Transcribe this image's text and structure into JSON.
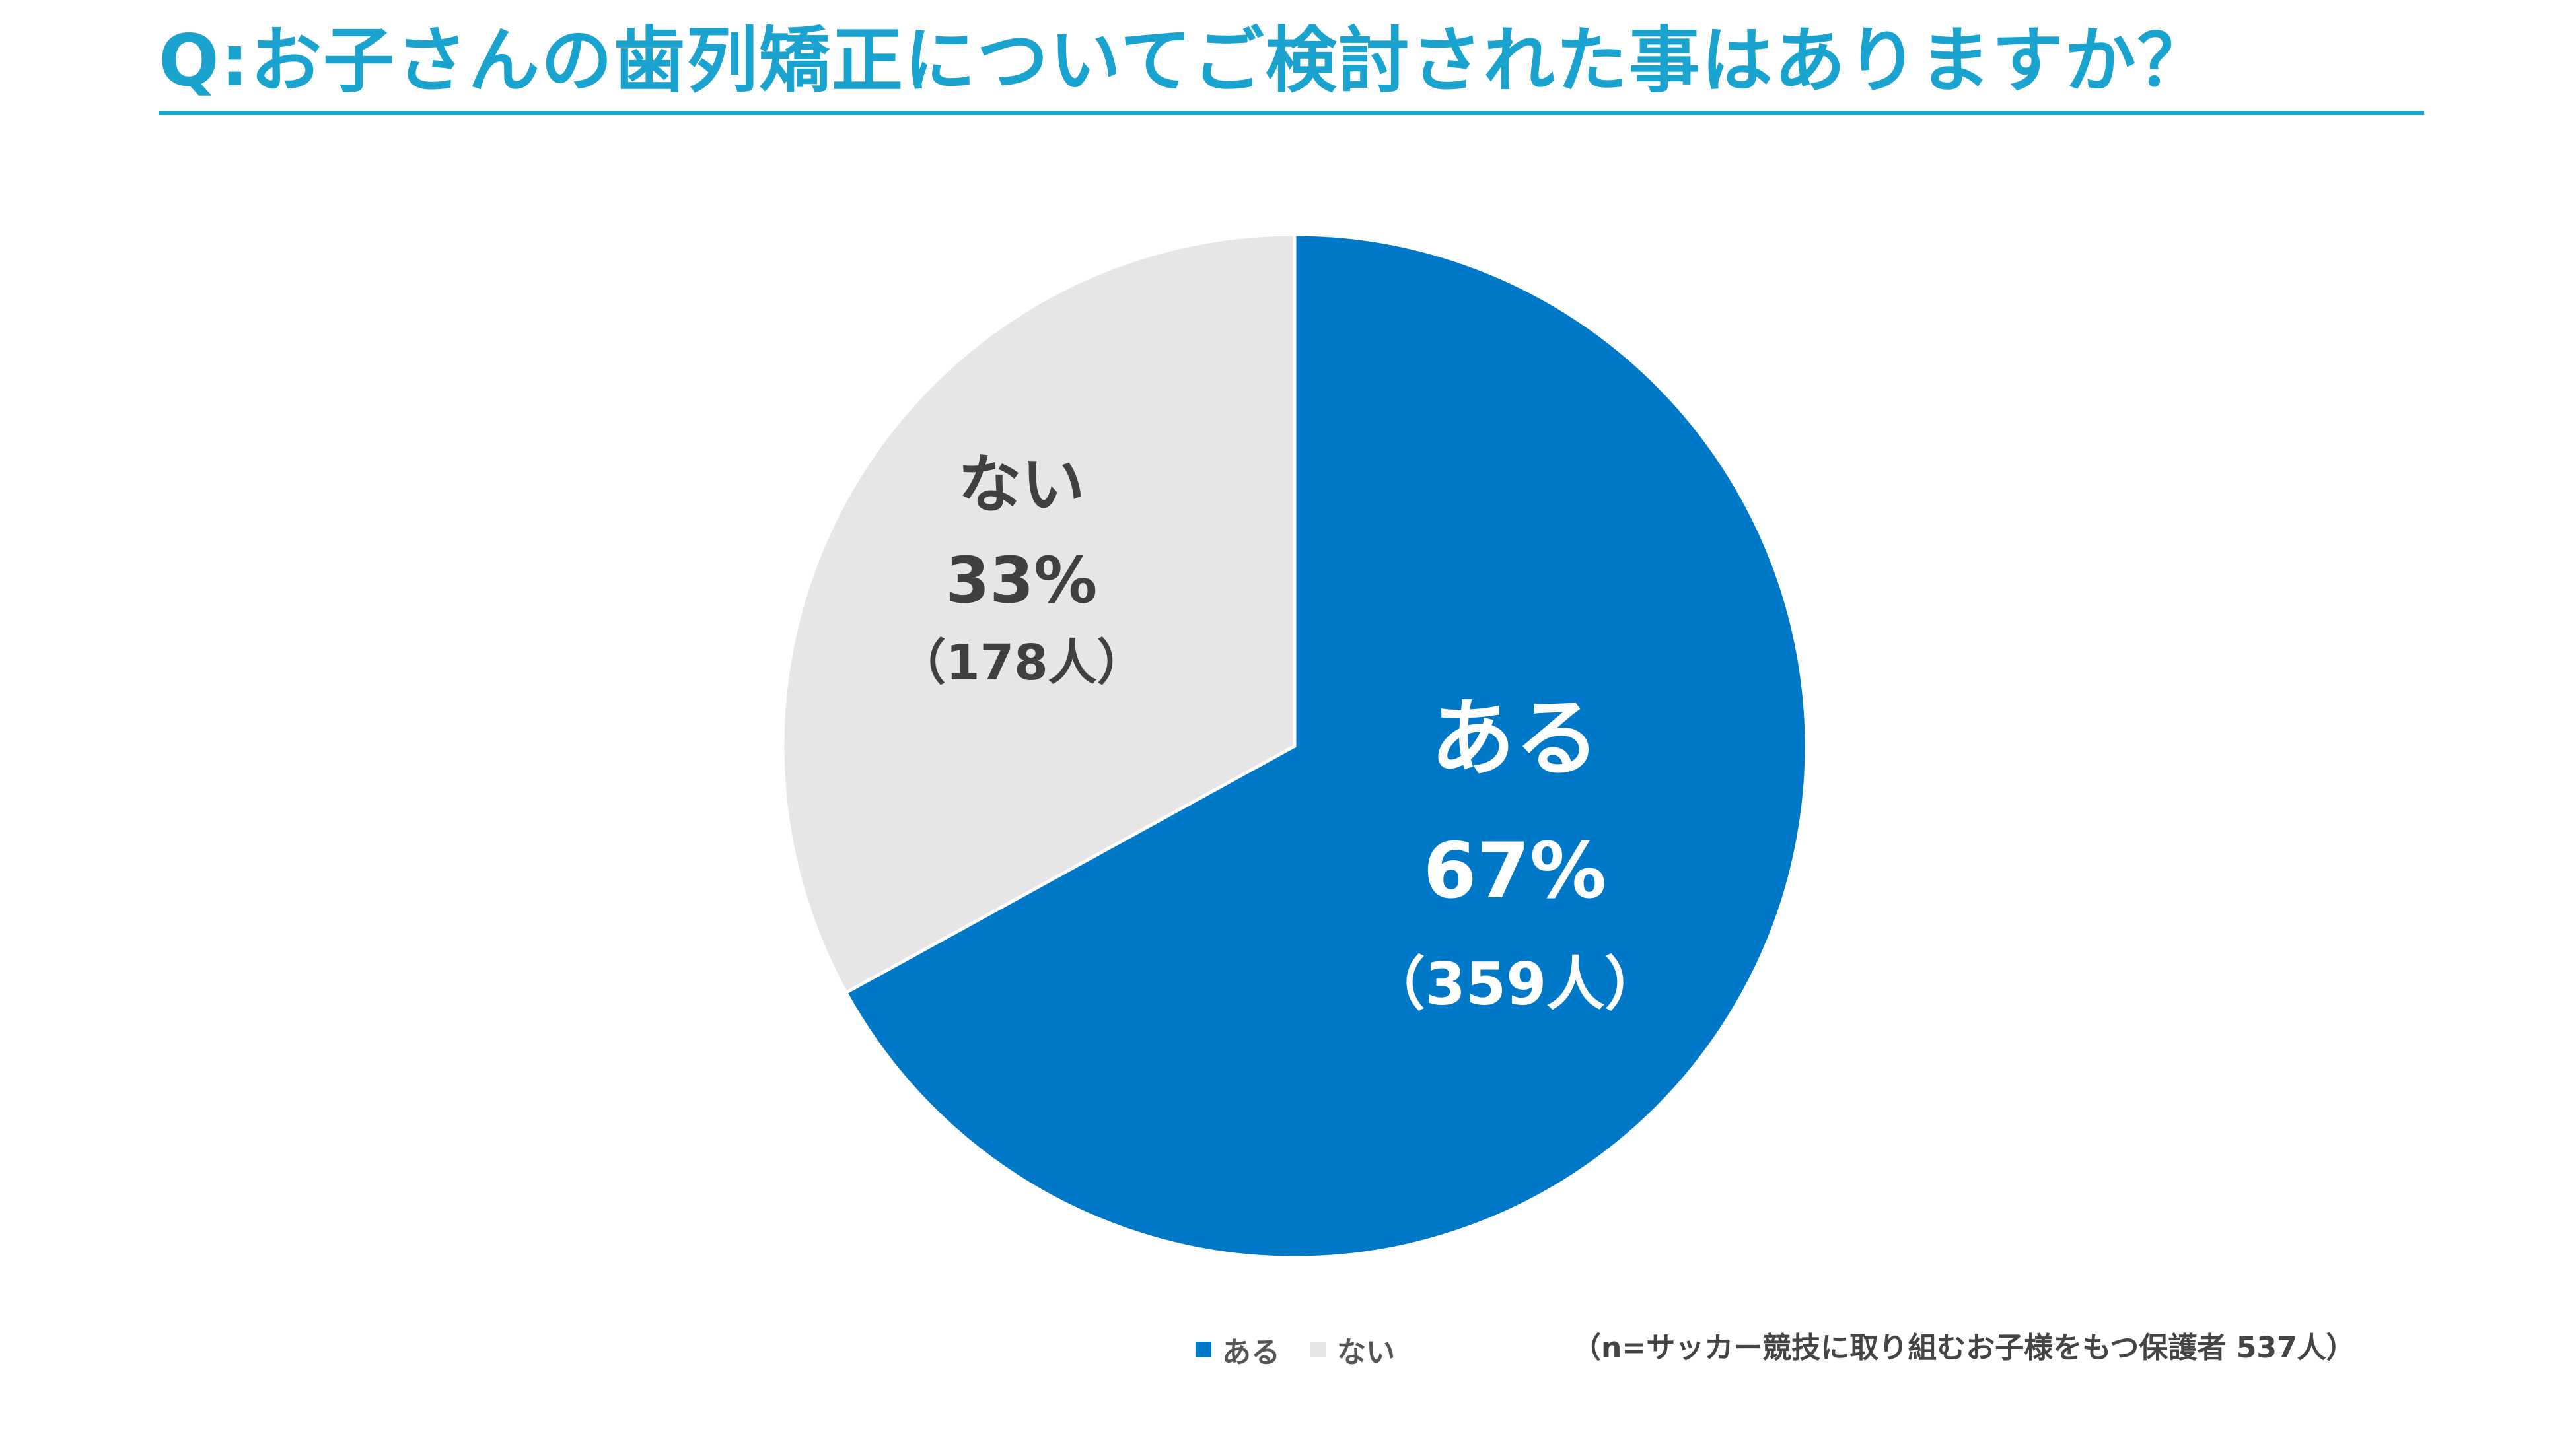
{
  "chart_data": {
    "type": "pie",
    "title": "Q:お子さんの歯列矯正についてご検討された事はありますか？",
    "slices": [
      {
        "name": "ある",
        "value": 67,
        "percent_label": "67%",
        "count_label": "（359人）",
        "color": "#0078c8",
        "label_color": "#ffffff"
      },
      {
        "name": "ない",
        "value": 33,
        "percent_label": "33%",
        "count_label": "（178人）",
        "color": "#e6e6e6",
        "label_color": "#404040"
      }
    ],
    "legend": [
      {
        "name": "ある",
        "color": "#0078c8"
      },
      {
        "name": "ない",
        "color": "#e6e6e6"
      }
    ],
    "legend_position": "bottom",
    "note": "（n=サッカー競技に取り組むお子様をもつ保護者 537人）"
  },
  "colors": {
    "title": "#1aa3cf",
    "slice_border": "#ffffff"
  }
}
